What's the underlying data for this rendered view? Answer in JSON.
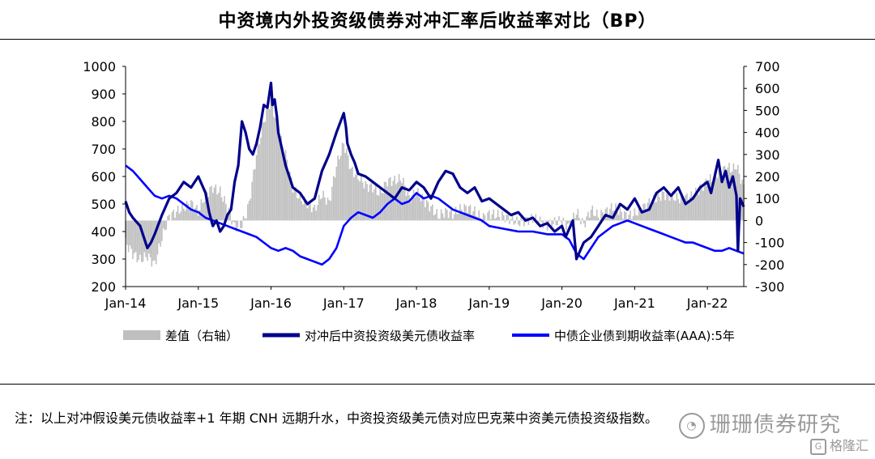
{
  "chart_data": {
    "type": "line",
    "title": "中资境内外投资级债券对冲汇率后收益率对比（BP）",
    "categories": [
      "Jan-14",
      "Jan-15",
      "Jan-16",
      "Jan-17",
      "Jan-18",
      "Jan-19",
      "Jan-20",
      "Jan-21",
      "Jan-22"
    ],
    "y_left": {
      "ticks": [
        1000,
        900,
        800,
        700,
        600,
        500,
        400,
        300,
        200
      ],
      "range": [
        200,
        1000
      ]
    },
    "y_right": {
      "ticks": [
        700,
        600,
        500,
        400,
        300,
        200,
        100,
        0,
        -100,
        -200,
        -300
      ],
      "range": [
        -300,
        700
      ]
    },
    "grid": false,
    "legend_position": "bottom",
    "x_range": [
      2014.0,
      2022.5
    ],
    "series": [
      {
        "name": "差值（右轴）",
        "type": "area",
        "axis": "right",
        "color": "#bfbfbf",
        "x": [
          2014.0,
          2014.1,
          2014.2,
          2014.3,
          2014.4,
          2014.5,
          2014.6,
          2014.7,
          2014.8,
          2014.9,
          2015.0,
          2015.1,
          2015.2,
          2015.3,
          2015.4,
          2015.5,
          2015.6,
          2015.65,
          2015.7,
          2015.8,
          2015.9,
          2016.0,
          2016.05,
          2016.1,
          2016.2,
          2016.3,
          2016.4,
          2016.5,
          2016.6,
          2016.7,
          2016.8,
          2016.9,
          2017.0,
          2017.05,
          2017.1,
          2017.2,
          2017.3,
          2017.4,
          2017.5,
          2017.6,
          2017.7,
          2017.8,
          2017.9,
          2018.0,
          2018.1,
          2018.2,
          2018.3,
          2018.4,
          2018.5,
          2018.6,
          2018.7,
          2018.8,
          2018.9,
          2019.0,
          2019.2,
          2019.4,
          2019.6,
          2019.8,
          2020.0,
          2020.1,
          2020.2,
          2020.3,
          2020.4,
          2020.5,
          2020.7,
          2020.9,
          2021.0,
          2021.2,
          2021.4,
          2021.6,
          2021.8,
          2022.0,
          2022.1,
          2022.2,
          2022.3,
          2022.35,
          2022.4,
          2022.45,
          2022.5
        ],
        "values": [
          -100,
          -150,
          -180,
          -160,
          -200,
          -80,
          20,
          40,
          60,
          80,
          40,
          120,
          150,
          130,
          60,
          -30,
          -20,
          20,
          80,
          300,
          450,
          550,
          480,
          400,
          300,
          150,
          100,
          80,
          50,
          120,
          80,
          250,
          350,
          300,
          230,
          200,
          160,
          150,
          120,
          180,
          180,
          190,
          100,
          130,
          90,
          60,
          20,
          40,
          30,
          50,
          60,
          40,
          10,
          30,
          20,
          -10,
          10,
          -20,
          0,
          -30,
          40,
          -20,
          50,
          20,
          60,
          20,
          30,
          80,
          120,
          100,
          110,
          180,
          200,
          230,
          240,
          230,
          250,
          200,
          150
        ]
      },
      {
        "name": "对冲后中资投资级美元债收益率",
        "type": "line",
        "axis": "left",
        "color": "#00008b",
        "x": [
          2014.0,
          2014.05,
          2014.1,
          2014.2,
          2014.25,
          2014.3,
          2014.35,
          2014.4,
          2014.5,
          2014.6,
          2014.7,
          2014.8,
          2014.9,
          2015.0,
          2015.1,
          2015.15,
          2015.2,
          2015.25,
          2015.3,
          2015.35,
          2015.4,
          2015.45,
          2015.5,
          2015.55,
          2015.6,
          2015.65,
          2015.7,
          2015.75,
          2015.8,
          2015.85,
          2015.9,
          2015.95,
          2016.0,
          2016.02,
          2016.05,
          2016.08,
          2016.1,
          2016.15,
          2016.2,
          2016.3,
          2016.4,
          2016.5,
          2016.6,
          2016.7,
          2016.8,
          2016.9,
          2017.0,
          2017.03,
          2017.05,
          2017.1,
          2017.15,
          2017.2,
          2017.3,
          2017.4,
          2017.5,
          2017.6,
          2017.7,
          2017.8,
          2017.9,
          2018.0,
          2018.1,
          2018.2,
          2018.3,
          2018.4,
          2018.5,
          2018.6,
          2018.7,
          2018.8,
          2018.9,
          2019.0,
          2019.1,
          2019.2,
          2019.3,
          2019.4,
          2019.5,
          2019.6,
          2019.7,
          2019.8,
          2019.9,
          2020.0,
          2020.05,
          2020.1,
          2020.15,
          2020.2,
          2020.3,
          2020.4,
          2020.5,
          2020.6,
          2020.7,
          2020.8,
          2020.9,
          2021.0,
          2021.1,
          2021.2,
          2021.3,
          2021.4,
          2021.5,
          2021.6,
          2021.7,
          2021.8,
          2021.9,
          2022.0,
          2022.05,
          2022.1,
          2022.15,
          2022.2,
          2022.25,
          2022.3,
          2022.35,
          2022.4,
          2022.42,
          2022.45,
          2022.5
        ],
        "values": [
          510,
          470,
          450,
          420,
          380,
          340,
          360,
          390,
          460,
          520,
          540,
          580,
          560,
          600,
          540,
          470,
          420,
          440,
          400,
          420,
          460,
          480,
          580,
          640,
          800,
          760,
          700,
          680,
          720,
          780,
          860,
          850,
          940,
          860,
          880,
          820,
          760,
          700,
          640,
          560,
          540,
          500,
          520,
          620,
          680,
          760,
          830,
          780,
          720,
          680,
          650,
          610,
          600,
          580,
          560,
          540,
          520,
          560,
          550,
          580,
          560,
          520,
          580,
          620,
          610,
          560,
          540,
          560,
          510,
          520,
          500,
          480,
          460,
          470,
          440,
          450,
          420,
          430,
          400,
          420,
          380,
          410,
          440,
          300,
          360,
          380,
          420,
          460,
          450,
          500,
          480,
          520,
          470,
          480,
          540,
          560,
          530,
          560,
          500,
          520,
          560,
          580,
          540,
          600,
          660,
          580,
          620,
          560,
          600,
          530,
          330,
          520,
          490
        ]
      },
      {
        "name": "中债企业债到期收益率(AAA):5年",
        "type": "line",
        "axis": "left",
        "color": "#0000ff",
        "x": [
          2014.0,
          2014.1,
          2014.2,
          2014.3,
          2014.4,
          2014.5,
          2014.6,
          2014.7,
          2014.8,
          2014.9,
          2015.0,
          2015.1,
          2015.2,
          2015.3,
          2015.4,
          2015.5,
          2015.6,
          2015.7,
          2015.8,
          2015.9,
          2016.0,
          2016.1,
          2016.2,
          2016.3,
          2016.4,
          2016.5,
          2016.6,
          2016.7,
          2016.8,
          2016.9,
          2017.0,
          2017.1,
          2017.2,
          2017.3,
          2017.4,
          2017.5,
          2017.6,
          2017.7,
          2017.8,
          2017.9,
          2018.0,
          2018.1,
          2018.2,
          2018.3,
          2018.4,
          2018.5,
          2018.6,
          2018.7,
          2018.8,
          2018.9,
          2019.0,
          2019.2,
          2019.4,
          2019.6,
          2019.8,
          2020.0,
          2020.1,
          2020.2,
          2020.3,
          2020.4,
          2020.5,
          2020.6,
          2020.7,
          2020.8,
          2020.9,
          2021.0,
          2021.1,
          2021.2,
          2021.3,
          2021.4,
          2021.5,
          2021.6,
          2021.7,
          2021.8,
          2021.9,
          2022.0,
          2022.1,
          2022.2,
          2022.3,
          2022.4,
          2022.5
        ],
        "values": [
          640,
          620,
          590,
          560,
          530,
          520,
          530,
          520,
          500,
          480,
          470,
          450,
          440,
          430,
          420,
          410,
          400,
          390,
          380,
          360,
          340,
          330,
          340,
          330,
          310,
          300,
          290,
          280,
          300,
          340,
          420,
          450,
          470,
          460,
          450,
          470,
          500,
          520,
          500,
          510,
          540,
          520,
          530,
          520,
          500,
          480,
          470,
          460,
          450,
          440,
          420,
          410,
          400,
          400,
          390,
          390,
          370,
          320,
          300,
          340,
          380,
          400,
          420,
          430,
          440,
          430,
          420,
          410,
          400,
          390,
          380,
          370,
          360,
          360,
          350,
          340,
          330,
          330,
          340,
          330,
          320
        ]
      }
    ]
  },
  "note": "注：以上对冲假设美元债收益率+1 年期 CNH 远期升水，中资投资级美元债对应巴克莱中资美元债投资级指数。",
  "watermark": {
    "icon": "wechat-icon",
    "text": "珊珊债券研究",
    "secondary_icon": "gelonghui-icon",
    "secondary_text": "格隆汇"
  }
}
